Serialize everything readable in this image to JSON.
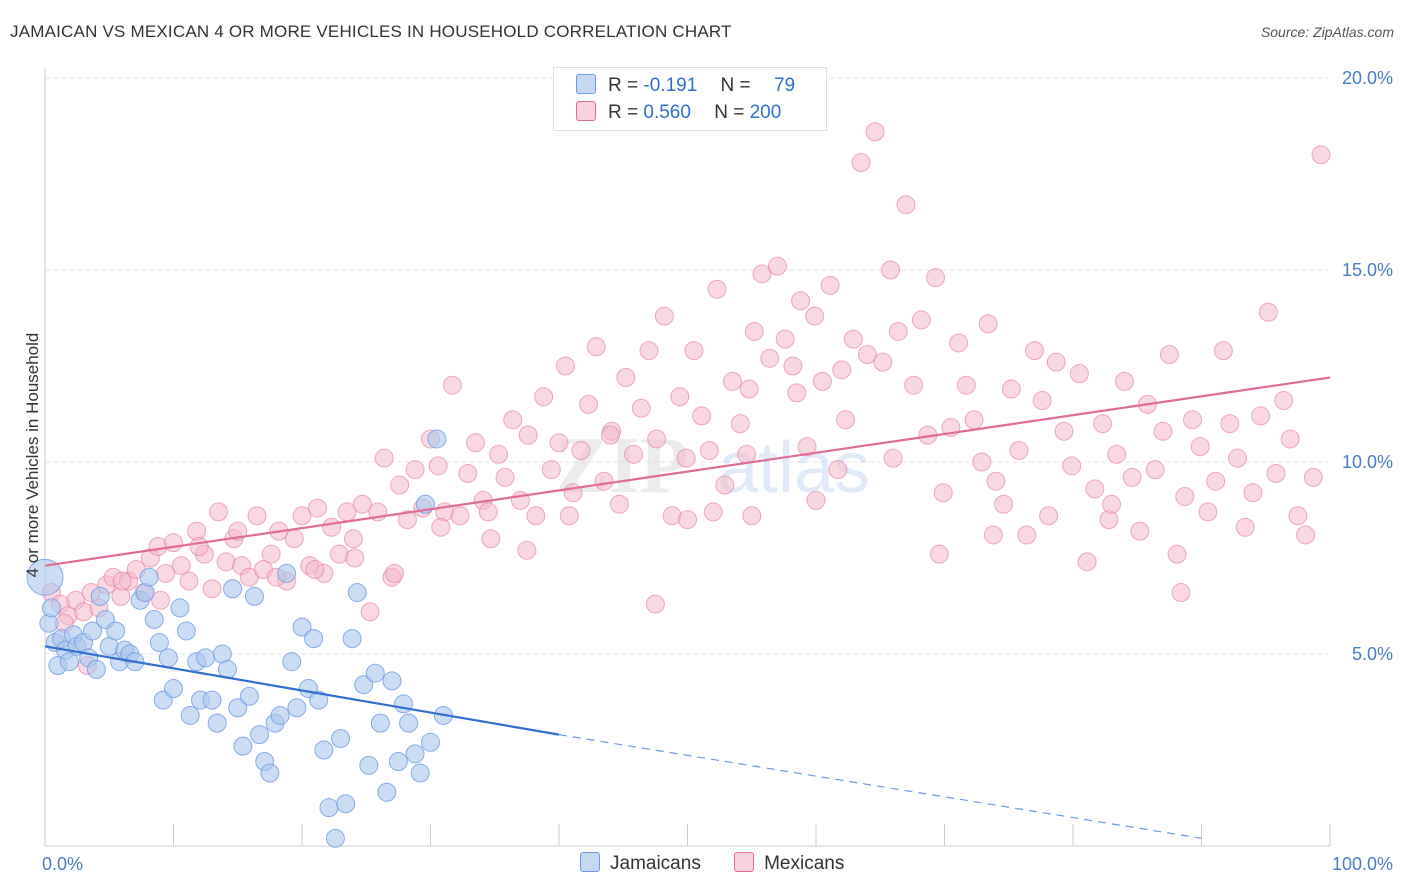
{
  "title": "JAMAICAN VS MEXICAN 4 OR MORE VEHICLES IN HOUSEHOLD CORRELATION CHART",
  "source": "Source: ZipAtlas.com",
  "watermark": {
    "zip": "ZIP",
    "atlas": "atlas"
  },
  "legend": {
    "rows": [
      {
        "r_label": "R =",
        "r_value": "-0.191",
        "n_label": "N =",
        "n_value": "79",
        "color": "#a9c6ee"
      },
      {
        "r_label": "R =",
        "r_value": "0.560",
        "n_label": "N =",
        "n_value": "200",
        "color": "#f4b8cb"
      }
    ]
  },
  "bottom_legend": [
    {
      "label": "Jamaicans",
      "color": "#a9c6ee"
    },
    {
      "label": "Mexicans",
      "color": "#f4b8cb"
    }
  ],
  "chart_data": {
    "type": "scatter",
    "title": "JAMAICAN VS MEXICAN 4 OR MORE VEHICLES IN HOUSEHOLD CORRELATION CHART",
    "xlabel": "",
    "ylabel": "4 or more Vehicles in Household",
    "xlim": [
      0,
      100
    ],
    "ylim": [
      0,
      20
    ],
    "x_tick_labels": [
      "0.0%",
      "100.0%"
    ],
    "y_ticks": [
      5,
      10,
      15,
      20
    ],
    "y_tick_labels": [
      "5.0%",
      "10.0%",
      "15.0%",
      "20.0%"
    ],
    "grid": true,
    "legend_position": "top-center",
    "series": [
      {
        "name": "Jamaicans",
        "color": "#6b9be0",
        "fill": "#a9c6ee",
        "trend": {
          "x": [
            0,
            40
          ],
          "y": [
            5.2,
            2.9
          ],
          "dashed_to": [
            90,
            0.2
          ]
        },
        "points": [
          [
            0,
            7.0
          ],
          [
            0.3,
            5.8
          ],
          [
            0.5,
            6.2
          ],
          [
            0.8,
            5.3
          ],
          [
            1.0,
            4.7
          ],
          [
            1.3,
            5.4
          ],
          [
            1.6,
            5.1
          ],
          [
            1.9,
            4.8
          ],
          [
            2.2,
            5.5
          ],
          [
            2.5,
            5.2
          ],
          [
            3.0,
            5.3
          ],
          [
            3.4,
            4.9
          ],
          [
            3.7,
            5.6
          ],
          [
            4.0,
            4.6
          ],
          [
            4.3,
            6.5
          ],
          [
            4.7,
            5.9
          ],
          [
            5.0,
            5.2
          ],
          [
            5.5,
            5.6
          ],
          [
            5.8,
            4.8
          ],
          [
            6.2,
            5.1
          ],
          [
            6.6,
            5.0
          ],
          [
            7.0,
            4.8
          ],
          [
            7.4,
            6.4
          ],
          [
            7.8,
            6.6
          ],
          [
            8.1,
            7.0
          ],
          [
            8.5,
            5.9
          ],
          [
            8.9,
            5.3
          ],
          [
            9.2,
            3.8
          ],
          [
            9.6,
            4.9
          ],
          [
            10.0,
            4.1
          ],
          [
            10.5,
            6.2
          ],
          [
            11.0,
            5.6
          ],
          [
            11.3,
            3.4
          ],
          [
            11.8,
            4.8
          ],
          [
            12.1,
            3.8
          ],
          [
            12.5,
            4.9
          ],
          [
            13.0,
            3.8
          ],
          [
            13.4,
            3.2
          ],
          [
            13.8,
            5.0
          ],
          [
            14.2,
            4.6
          ],
          [
            14.6,
            6.7
          ],
          [
            15.0,
            3.6
          ],
          [
            15.4,
            2.6
          ],
          [
            15.9,
            3.9
          ],
          [
            16.3,
            6.5
          ],
          [
            16.7,
            2.9
          ],
          [
            17.1,
            2.2
          ],
          [
            17.5,
            1.9
          ],
          [
            17.9,
            3.2
          ],
          [
            18.3,
            3.4
          ],
          [
            18.8,
            7.1
          ],
          [
            19.2,
            4.8
          ],
          [
            19.6,
            3.6
          ],
          [
            20.0,
            5.7
          ],
          [
            20.5,
            4.1
          ],
          [
            20.9,
            5.4
          ],
          [
            21.3,
            3.8
          ],
          [
            21.7,
            2.5
          ],
          [
            22.1,
            1.0
          ],
          [
            22.6,
            0.2
          ],
          [
            23.0,
            2.8
          ],
          [
            23.4,
            1.1
          ],
          [
            23.9,
            5.4
          ],
          [
            24.3,
            6.6
          ],
          [
            24.8,
            4.2
          ],
          [
            25.2,
            2.1
          ],
          [
            25.7,
            4.5
          ],
          [
            26.1,
            3.2
          ],
          [
            26.6,
            1.4
          ],
          [
            27.0,
            4.3
          ],
          [
            27.5,
            2.2
          ],
          [
            27.9,
            3.7
          ],
          [
            28.3,
            3.2
          ],
          [
            28.8,
            2.4
          ],
          [
            29.2,
            1.9
          ],
          [
            29.6,
            8.9
          ],
          [
            30.0,
            2.7
          ],
          [
            30.5,
            10.6
          ],
          [
            31.0,
            3.4
          ]
        ]
      },
      {
        "name": "Mexicans",
        "color": "#e06c95",
        "fill": "#f4b8cb",
        "trend": {
          "x": [
            0,
            100
          ],
          "y": [
            7.3,
            12.2
          ]
        },
        "points": [
          [
            0.5,
            6.6
          ],
          [
            1.2,
            6.3
          ],
          [
            1.8,
            6.0
          ],
          [
            2.4,
            6.4
          ],
          [
            3.0,
            6.1
          ],
          [
            3.6,
            6.6
          ],
          [
            4.2,
            6.2
          ],
          [
            4.8,
            6.8
          ],
          [
            5.3,
            7.0
          ],
          [
            5.9,
            6.5
          ],
          [
            6.5,
            6.9
          ],
          [
            7.1,
            7.2
          ],
          [
            7.7,
            6.6
          ],
          [
            8.2,
            7.5
          ],
          [
            8.8,
            7.8
          ],
          [
            9.4,
            7.1
          ],
          [
            10.0,
            7.9
          ],
          [
            10.6,
            7.3
          ],
          [
            11.2,
            6.9
          ],
          [
            11.8,
            8.2
          ],
          [
            12.4,
            7.6
          ],
          [
            13.0,
            6.7
          ],
          [
            13.5,
            8.7
          ],
          [
            14.1,
            7.4
          ],
          [
            14.7,
            8.0
          ],
          [
            15.3,
            7.3
          ],
          [
            15.9,
            7.0
          ],
          [
            16.5,
            8.6
          ],
          [
            17.0,
            7.2
          ],
          [
            17.6,
            7.6
          ],
          [
            18.2,
            8.2
          ],
          [
            18.8,
            6.9
          ],
          [
            19.4,
            8.0
          ],
          [
            20.0,
            8.6
          ],
          [
            20.6,
            7.3
          ],
          [
            21.2,
            8.8
          ],
          [
            21.7,
            7.1
          ],
          [
            22.3,
            8.3
          ],
          [
            22.9,
            7.6
          ],
          [
            23.5,
            8.7
          ],
          [
            24.1,
            7.5
          ],
          [
            24.7,
            8.9
          ],
          [
            25.3,
            6.1
          ],
          [
            25.9,
            8.7
          ],
          [
            26.4,
            10.1
          ],
          [
            27.0,
            7.0
          ],
          [
            27.6,
            9.4
          ],
          [
            28.2,
            8.5
          ],
          [
            28.8,
            9.8
          ],
          [
            29.4,
            8.8
          ],
          [
            30.0,
            10.6
          ],
          [
            30.6,
            9.9
          ],
          [
            31.1,
            8.7
          ],
          [
            31.7,
            12.0
          ],
          [
            32.3,
            8.6
          ],
          [
            32.9,
            9.7
          ],
          [
            33.5,
            10.5
          ],
          [
            34.1,
            9.0
          ],
          [
            34.7,
            8.0
          ],
          [
            35.3,
            10.2
          ],
          [
            35.8,
            9.6
          ],
          [
            36.4,
            11.1
          ],
          [
            37.0,
            9.0
          ],
          [
            37.6,
            10.7
          ],
          [
            38.2,
            8.6
          ],
          [
            38.8,
            11.7
          ],
          [
            39.4,
            9.8
          ],
          [
            40.0,
            10.5
          ],
          [
            40.5,
            12.5
          ],
          [
            41.1,
            9.2
          ],
          [
            41.7,
            10.3
          ],
          [
            42.3,
            11.5
          ],
          [
            42.9,
            13.0
          ],
          [
            43.5,
            9.5
          ],
          [
            44.1,
            10.8
          ],
          [
            44.7,
            8.9
          ],
          [
            45.2,
            12.2
          ],
          [
            45.8,
            10.2
          ],
          [
            46.4,
            11.4
          ],
          [
            47.0,
            12.9
          ],
          [
            47.6,
            10.6
          ],
          [
            48.2,
            13.8
          ],
          [
            48.8,
            8.6
          ],
          [
            49.4,
            11.7
          ],
          [
            49.9,
            10.1
          ],
          [
            50.5,
            12.9
          ],
          [
            51.1,
            11.2
          ],
          [
            51.7,
            10.3
          ],
          [
            52.3,
            14.5
          ],
          [
            52.9,
            9.4
          ],
          [
            53.5,
            12.1
          ],
          [
            54.1,
            11.0
          ],
          [
            54.6,
            10.2
          ],
          [
            55.2,
            13.4
          ],
          [
            55.8,
            14.9
          ],
          [
            56.4,
            12.7
          ],
          [
            57.0,
            15.1
          ],
          [
            57.6,
            13.2
          ],
          [
            58.2,
            12.5
          ],
          [
            58.8,
            14.2
          ],
          [
            59.3,
            10.4
          ],
          [
            59.9,
            13.8
          ],
          [
            60.5,
            12.1
          ],
          [
            61.1,
            14.6
          ],
          [
            61.7,
            9.8
          ],
          [
            62.3,
            11.1
          ],
          [
            62.9,
            13.2
          ],
          [
            63.5,
            17.8
          ],
          [
            64.0,
            12.8
          ],
          [
            64.6,
            18.6
          ],
          [
            65.2,
            12.6
          ],
          [
            65.8,
            15.0
          ],
          [
            66.4,
            13.4
          ],
          [
            67.0,
            16.7
          ],
          [
            67.6,
            12.0
          ],
          [
            68.2,
            13.7
          ],
          [
            68.7,
            10.7
          ],
          [
            69.3,
            14.8
          ],
          [
            69.9,
            9.2
          ],
          [
            70.5,
            10.9
          ],
          [
            71.1,
            13.1
          ],
          [
            71.7,
            12.0
          ],
          [
            72.3,
            11.1
          ],
          [
            72.9,
            10.0
          ],
          [
            73.4,
            13.6
          ],
          [
            74.0,
            9.5
          ],
          [
            74.6,
            8.9
          ],
          [
            75.2,
            11.9
          ],
          [
            75.8,
            10.3
          ],
          [
            76.4,
            8.1
          ],
          [
            77.0,
            12.9
          ],
          [
            77.6,
            11.6
          ],
          [
            78.1,
            8.6
          ],
          [
            78.7,
            12.6
          ],
          [
            79.3,
            10.8
          ],
          [
            79.9,
            9.9
          ],
          [
            80.5,
            12.3
          ],
          [
            81.1,
            7.4
          ],
          [
            81.7,
            9.3
          ],
          [
            82.3,
            11.0
          ],
          [
            82.8,
            8.5
          ],
          [
            83.4,
            10.2
          ],
          [
            84.0,
            12.1
          ],
          [
            84.6,
            9.6
          ],
          [
            85.2,
            8.2
          ],
          [
            85.8,
            11.5
          ],
          [
            86.4,
            9.8
          ],
          [
            87.0,
            10.8
          ],
          [
            87.5,
            12.8
          ],
          [
            88.1,
            7.6
          ],
          [
            88.7,
            9.1
          ],
          [
            89.3,
            11.1
          ],
          [
            89.9,
            10.4
          ],
          [
            90.5,
            8.7
          ],
          [
            91.1,
            9.5
          ],
          [
            91.7,
            12.9
          ],
          [
            92.2,
            11.0
          ],
          [
            92.8,
            10.1
          ],
          [
            93.4,
            8.3
          ],
          [
            94.0,
            9.2
          ],
          [
            94.6,
            11.2
          ],
          [
            95.2,
            13.9
          ],
          [
            95.8,
            9.7
          ],
          [
            96.4,
            11.6
          ],
          [
            96.9,
            10.6
          ],
          [
            97.5,
            8.6
          ],
          [
            98.1,
            8.1
          ],
          [
            98.7,
            9.6
          ],
          [
            99.3,
            18.0
          ],
          [
            47.5,
            6.3
          ],
          [
            52.0,
            8.7
          ],
          [
            55.0,
            8.6
          ],
          [
            60.0,
            9.0
          ],
          [
            50.0,
            8.5
          ],
          [
            44.0,
            10.7
          ],
          [
            40.8,
            8.6
          ],
          [
            37.5,
            7.7
          ],
          [
            34.5,
            8.7
          ],
          [
            30.8,
            8.3
          ],
          [
            27.2,
            7.1
          ],
          [
            24.0,
            8.0
          ],
          [
            21.0,
            7.2
          ],
          [
            18.0,
            7.0
          ],
          [
            15.0,
            8.2
          ],
          [
            12.0,
            7.8
          ],
          [
            9.0,
            6.4
          ],
          [
            6.0,
            6.9
          ],
          [
            3.3,
            4.7
          ],
          [
            1.5,
            5.8
          ],
          [
            88.4,
            6.6
          ],
          [
            83.0,
            8.9
          ],
          [
            73.8,
            8.1
          ],
          [
            69.6,
            7.6
          ],
          [
            66.0,
            10.1
          ],
          [
            62.0,
            12.4
          ],
          [
            58.5,
            11.8
          ],
          [
            54.8,
            11.9
          ]
        ]
      }
    ]
  }
}
